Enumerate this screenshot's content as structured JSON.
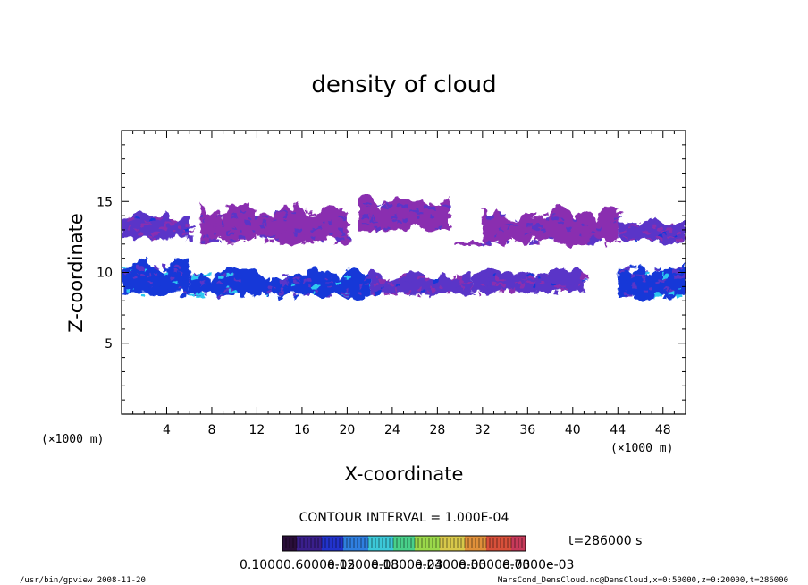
{
  "chart_data": {
    "type": "heatmap",
    "title": "density of cloud",
    "xlabel": "X-coordinate",
    "ylabel": "Z-coordinate",
    "x_unit_label": "(×1000 m)",
    "y_unit_label": "(×1000 m)",
    "xlim": [
      0,
      50
    ],
    "ylim": [
      0,
      20
    ],
    "x_ticks": [
      "4",
      "8",
      "12",
      "16",
      "20",
      "24",
      "28",
      "32",
      "36",
      "40",
      "44",
      "48"
    ],
    "y_ticks": [
      "5",
      "10",
      "15"
    ],
    "x_tick_values": [
      4,
      8,
      12,
      16,
      20,
      24,
      28,
      32,
      36,
      40,
      44,
      48
    ],
    "y_tick_values": [
      5,
      10,
      15
    ],
    "contour_interval": "CONTOUR INTERVAL = 1.000E-04",
    "time_label": "t=286000 s",
    "colorbar_labels": [
      "0.1000",
      "0.6000e-05",
      "0.1200e-03",
      "0.1800e-03",
      "0.2400e-03",
      "0.3000e-03",
      "0.7000e-03"
    ],
    "colormap": [
      "#2a0e3a",
      "#3a1f8c",
      "#2233cc",
      "#2f7fe0",
      "#3cc8d8",
      "#49d08a",
      "#9ad84a",
      "#d8c84a",
      "#e0903a",
      "#d8503a",
      "#c83a5a"
    ],
    "cloud_colors": {
      "low": "#8a2fb0",
      "mid": "#5a35c8",
      "high": "#1438d8",
      "peak": "#2ec8f0"
    },
    "upper_layer": {
      "z_range_km": [
        11.8,
        15.5
      ],
      "segments": [
        {
          "x_km": [
            0,
            6
          ],
          "z_km": [
            12.2,
            14.4
          ],
          "level": "mid"
        },
        {
          "x_km": [
            7,
            20
          ],
          "z_km": [
            11.8,
            15.2
          ],
          "level": "low"
        },
        {
          "x_km": [
            21,
            29
          ],
          "z_km": [
            12.8,
            15.5
          ],
          "level": "low"
        },
        {
          "x_km": [
            29.5,
            32
          ],
          "z_km": [
            11.9,
            12.2
          ],
          "level": "low"
        },
        {
          "x_km": [
            32,
            44
          ],
          "z_km": [
            11.8,
            14.8
          ],
          "level": "low"
        },
        {
          "x_km": [
            44,
            50
          ],
          "z_km": [
            12.0,
            14.0
          ],
          "level": "mid"
        }
      ]
    },
    "lower_layer": {
      "z_range_km": [
        8.0,
        11.2
      ],
      "segments": [
        {
          "x_km": [
            0,
            6
          ],
          "z_km": [
            8.2,
            11.2
          ],
          "level": "high"
        },
        {
          "x_km": [
            6,
            22
          ],
          "z_km": [
            8.1,
            10.4
          ],
          "level": "high"
        },
        {
          "x_km": [
            22,
            31
          ],
          "z_km": [
            8.2,
            10.2
          ],
          "level": "mid"
        },
        {
          "x_km": [
            31,
            41
          ],
          "z_km": [
            8.4,
            10.4
          ],
          "level": "mid"
        },
        {
          "x_km": [
            44,
            50
          ],
          "z_km": [
            8.0,
            11.0
          ],
          "level": "high"
        }
      ]
    }
  },
  "footer": {
    "left": "/usr/bin/gpview  2008-11-20",
    "right": "MarsCond_DensCloud.nc@DensCloud,x=0:50000,z=0:20000,t=286000"
  }
}
